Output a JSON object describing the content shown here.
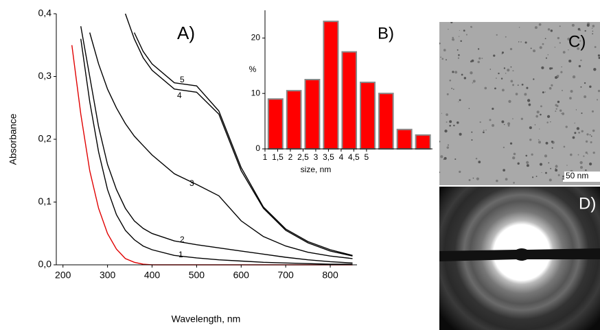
{
  "chart_data": [
    {
      "type": "line",
      "title": "A)",
      "xlabel": "Wavelength, nm",
      "ylabel": "Absorbance",
      "x": [
        220,
        240,
        260,
        280,
        300,
        320,
        340,
        360,
        380,
        400,
        450,
        500,
        550,
        600,
        650,
        700,
        750,
        800,
        850
      ],
      "series": [
        {
          "color": "#e00000",
          "values": [
            0.35,
            0.24,
            0.15,
            0.09,
            0.05,
            0.025,
            0.01,
            0.004,
            0.001,
            0,
            0,
            0,
            0,
            0,
            0,
            0,
            0,
            0,
            0
          ]
        },
        {
          "name": "1",
          "color": "#000000",
          "values": [
            null,
            0.36,
            0.26,
            0.18,
            0.12,
            0.08,
            0.055,
            0.04,
            0.03,
            0.024,
            0.015,
            0.011,
            0.008,
            0.006,
            0.004,
            0.003,
            0.002,
            0.001,
            0.001
          ]
        },
        {
          "name": "2",
          "color": "#000000",
          "values": [
            null,
            0.38,
            0.3,
            0.22,
            0.16,
            0.12,
            0.09,
            0.07,
            0.058,
            0.05,
            0.038,
            0.032,
            0.027,
            0.022,
            0.017,
            0.012,
            0.008,
            0.005,
            0.003
          ]
        },
        {
          "name": "3",
          "color": "#000000",
          "values": [
            null,
            null,
            0.37,
            0.32,
            0.28,
            0.25,
            0.225,
            0.205,
            0.19,
            0.175,
            0.145,
            0.128,
            0.11,
            0.07,
            0.045,
            0.03,
            0.02,
            0.014,
            0.01
          ]
        },
        {
          "name": "4",
          "color": "#000000",
          "values": [
            null,
            null,
            null,
            null,
            null,
            null,
            0.4,
            0.36,
            0.33,
            0.31,
            0.28,
            0.275,
            0.24,
            0.15,
            0.09,
            0.055,
            0.035,
            0.022,
            0.014
          ]
        },
        {
          "name": "5",
          "color": "#000000",
          "values": [
            null,
            null,
            null,
            null,
            null,
            null,
            null,
            0.37,
            0.34,
            0.32,
            0.29,
            0.285,
            0.245,
            0.155,
            0.092,
            0.057,
            0.037,
            0.024,
            0.015
          ]
        }
      ],
      "xlim": [
        185,
        860
      ],
      "xticks": [
        200,
        300,
        400,
        500,
        600,
        700,
        800
      ],
      "ylim": [
        0,
        0.4
      ],
      "yticks": [
        {
          "value": 0,
          "label": "0,0"
        },
        {
          "value": 0.1,
          "label": "0,1"
        },
        {
          "value": 0.2,
          "label": "0,2"
        },
        {
          "value": 0.3,
          "label": "0,3"
        },
        {
          "value": 0.4,
          "label": "0,4"
        }
      ]
    },
    {
      "type": "histogram",
      "title": "B)",
      "xlabel": "size, nm",
      "ylabel": "%",
      "color": "#ff0000",
      "bins": [
        1.05,
        1.78,
        2.5,
        3.23,
        3.96,
        4.68,
        5.41,
        6.13,
        6.86,
        7.59
      ],
      "values": [
        9,
        10.5,
        12.5,
        23,
        17.5,
        12,
        10,
        3.5,
        2.5
      ],
      "xlim": [
        1,
        7.6
      ],
      "xticks": [
        1,
        {
          "value": 1.5,
          "label": "1,5"
        },
        2,
        {
          "value": 2.5,
          "label": "2,5"
        },
        3,
        {
          "value": 3.5,
          "label": "3,5"
        },
        4,
        {
          "value": 4.5,
          "label": "4,5"
        },
        5
      ],
      "ylim": [
        0,
        25
      ],
      "yticks": [
        0,
        10,
        20
      ]
    }
  ],
  "images": [
    {
      "label": "C)",
      "scale_bar": "50 nm"
    },
    {
      "label": "D)"
    }
  ]
}
